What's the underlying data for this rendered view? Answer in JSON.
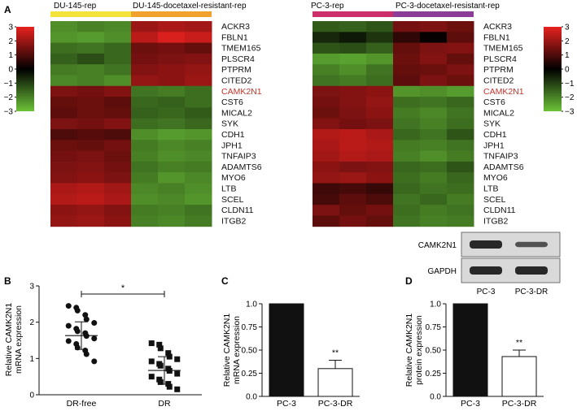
{
  "figure": {
    "panel_labels": [
      "A",
      "B",
      "C",
      "D"
    ]
  },
  "heatmap_colors": {
    "high": "#e8221f",
    "mid": "#000000",
    "low": "#6cc238"
  },
  "chart_data": [
    {
      "type": "heatmap",
      "panel": "A-left",
      "groups": [
        {
          "label": "DU-145-rep",
          "color": "#f3e33a",
          "samples": 3
        },
        {
          "label": "DU-145-docetaxel-resistant-rep",
          "color": "#f0a12e",
          "samples": 3
        }
      ],
      "rows": [
        "ACKR3",
        "FBLN1",
        "TMEM165",
        "PLSCR4",
        "PTPRM",
        "CITED2",
        "CAMK2N1",
        "CST6",
        "MICAL2",
        "SYK",
        "CDH1",
        "JPH1",
        "TNFAIP3",
        "ADAMTS6",
        "MYO6",
        "LTB",
        "SCEL",
        "CLDN11",
        "ITGB2"
      ],
      "highlight_row": "CAMK2N1",
      "highlight_color": "#c0352b",
      "colorbar": {
        "min": -3,
        "max": 3,
        "ticks": [
          "3",
          "2",
          "1",
          "0",
          "−1",
          "−2",
          "−3"
        ]
      },
      "values": [
        [
          -2.2,
          -2.0,
          -2.1,
          2.0,
          2.2,
          2.1
        ],
        [
          -2.3,
          -2.4,
          -2.2,
          2.4,
          2.8,
          2.6
        ],
        [
          -1.7,
          -1.8,
          -1.6,
          1.4,
          1.5,
          1.3
        ],
        [
          -1.5,
          -1.2,
          -1.6,
          1.5,
          1.6,
          1.7
        ],
        [
          -1.9,
          -2.0,
          -1.8,
          1.7,
          1.8,
          1.9
        ],
        [
          -2.1,
          -2.0,
          -2.2,
          1.9,
          1.8,
          2.0
        ],
        [
          1.6,
          1.5,
          1.7,
          -1.8,
          -1.9,
          -1.7
        ],
        [
          1.3,
          1.4,
          1.2,
          -1.6,
          -1.5,
          -1.7
        ],
        [
          1.2,
          1.4,
          1.3,
          -1.5,
          -1.6,
          -1.4
        ],
        [
          1.6,
          1.5,
          1.7,
          -1.7,
          -1.8,
          -1.6
        ],
        [
          1.0,
          1.1,
          1.0,
          -2.2,
          -2.4,
          -2.3
        ],
        [
          1.4,
          1.3,
          1.5,
          -1.9,
          -2.1,
          -2.0
        ],
        [
          1.5,
          1.6,
          1.4,
          -2.0,
          -2.2,
          -2.1
        ],
        [
          1.6,
          1.7,
          1.5,
          -1.8,
          -2.0,
          -1.9
        ],
        [
          1.7,
          1.8,
          1.6,
          -1.9,
          -2.3,
          -2.1
        ],
        [
          2.2,
          2.3,
          2.1,
          -2.1,
          -2.0,
          -2.2
        ],
        [
          2.3,
          2.4,
          2.2,
          -2.2,
          -2.1,
          -2.3
        ],
        [
          1.8,
          1.9,
          1.7,
          -1.9,
          -2.0,
          -1.8
        ],
        [
          1.9,
          2.0,
          1.8,
          -2.0,
          -2.1,
          -1.9
        ]
      ]
    },
    {
      "type": "heatmap",
      "panel": "A-right",
      "groups": [
        {
          "label": "PC-3-rep",
          "color": "#cc2f6b",
          "samples": 3
        },
        {
          "label": "PC-3-docetaxel-resistant-rep",
          "color": "#8b3d97",
          "samples": 3
        }
      ],
      "rows": [
        "ACKR3",
        "FBLN1",
        "TMEM165",
        "PLSCR4",
        "PTPRM",
        "CITED2",
        "CAMK2N1",
        "CST6",
        "MICAL2",
        "SYK",
        "CDH1",
        "JPH1",
        "TNFAIP3",
        "ADAMTS6",
        "MYO6",
        "LTB",
        "SCEL",
        "CLDN11",
        "ITGB2"
      ],
      "highlight_row": "CAMK2N1",
      "highlight_color": "#c0352b",
      "colorbar": {
        "min": -3,
        "max": 3,
        "ticks": [
          "3",
          "2",
          "1",
          "0",
          "−1",
          "−2",
          "−3"
        ]
      },
      "values": [
        [
          -1.4,
          -1.5,
          -1.3,
          1.5,
          1.6,
          1.4
        ],
        [
          -0.6,
          -0.4,
          -0.8,
          0.6,
          0.1,
          1.2
        ],
        [
          -1.3,
          -1.2,
          -1.5,
          1.3,
          1.6,
          1.7
        ],
        [
          -2.4,
          -2.5,
          -2.3,
          1.4,
          1.7,
          1.3
        ],
        [
          -2.0,
          -2.2,
          -1.8,
          1.3,
          1.4,
          1.6
        ],
        [
          -1.8,
          -1.9,
          -1.7,
          1.2,
          1.6,
          1.4
        ],
        [
          1.6,
          1.7,
          1.8,
          -2.3,
          -2.2,
          -2.4
        ],
        [
          1.5,
          1.7,
          1.9,
          -1.7,
          -1.8,
          -1.6
        ],
        [
          1.4,
          1.6,
          1.8,
          -1.9,
          -2.1,
          -1.8
        ],
        [
          1.7,
          1.5,
          1.6,
          -1.8,
          -2.0,
          -1.7
        ],
        [
          2.3,
          2.4,
          2.2,
          -1.6,
          -1.8,
          -1.3
        ],
        [
          2.2,
          2.4,
          2.3,
          -1.9,
          -2.0,
          -1.8
        ],
        [
          2.1,
          2.3,
          2.2,
          -2.0,
          -2.2,
          -1.9
        ],
        [
          1.8,
          1.6,
          1.7,
          -1.6,
          -1.7,
          -1.3
        ],
        [
          1.9,
          2.0,
          1.8,
          -1.7,
          -1.9,
          -1.6
        ],
        [
          0.8,
          0.9,
          0.7,
          -1.6,
          -1.8,
          -1.7
        ],
        [
          0.9,
          1.2,
          1.0,
          -1.8,
          -1.6,
          -1.9
        ],
        [
          1.6,
          1.3,
          1.5,
          -1.7,
          -1.9,
          -1.8
        ],
        [
          1.2,
          1.5,
          1.3,
          -1.8,
          -2.0,
          -1.9
        ]
      ]
    },
    {
      "type": "scatter",
      "panel": "B",
      "ylabel": "Relative CAMK2N1 mRNA expression",
      "categories": [
        "DR-free",
        "DR"
      ],
      "ylim": [
        0,
        3
      ],
      "yticks": [
        0,
        1,
        2,
        3
      ],
      "significance": "*",
      "series": [
        {
          "category": "DR-free",
          "marker": "circle",
          "mean": 1.63,
          "sd": 0.38,
          "points": [
            2.45,
            2.4,
            2.32,
            2.2,
            2.08,
            1.98,
            1.9,
            1.82,
            1.75,
            1.7,
            1.62,
            1.55,
            1.48,
            1.4,
            1.3,
            1.22,
            1.12,
            0.92
          ]
        },
        {
          "category": "DR",
          "marker": "square",
          "mean": 0.67,
          "sd": 0.38,
          "points": [
            1.42,
            1.38,
            1.28,
            1.15,
            1.05,
            0.98,
            0.92,
            0.85,
            0.8,
            0.72,
            0.66,
            0.58,
            0.5,
            0.42,
            0.35,
            0.3,
            0.22,
            0.15
          ]
        }
      ]
    },
    {
      "type": "bar",
      "panel": "C",
      "ylabel": "Relative CAMK2N1 mRNA expression",
      "categories": [
        "PC-3",
        "PC-3-DR"
      ],
      "values": [
        1.0,
        0.3
      ],
      "errors": [
        0,
        0.09
      ],
      "bar_fill": [
        "#111111",
        "#ffffff"
      ],
      "ylim": [
        0,
        1.0
      ],
      "yticks": [
        "0.0",
        "0.25",
        "0.50",
        "0.75",
        "1.0"
      ],
      "annotations": [
        "",
        "**"
      ]
    },
    {
      "type": "bar",
      "panel": "D",
      "ylabel": "Relative CAMK2N1 protein expression",
      "categories": [
        "PC-3",
        "PC-3-DR"
      ],
      "values": [
        1.0,
        0.43
      ],
      "errors": [
        0,
        0.07
      ],
      "bar_fill": [
        "#111111",
        "#ffffff"
      ],
      "ylim": [
        0,
        1.0
      ],
      "yticks": [
        "0.0",
        "0.25",
        "0.50",
        "0.75",
        "1.0"
      ],
      "annotations": [
        "",
        "**"
      ]
    }
  ],
  "western_blot": {
    "lanes": [
      "PC-3",
      "PC-3-DR"
    ],
    "bands": [
      {
        "label": "CAMK2N1",
        "intensities": [
          1.0,
          0.55
        ]
      },
      {
        "label": "GAPDH",
        "intensities": [
          1.0,
          1.0
        ]
      }
    ]
  }
}
